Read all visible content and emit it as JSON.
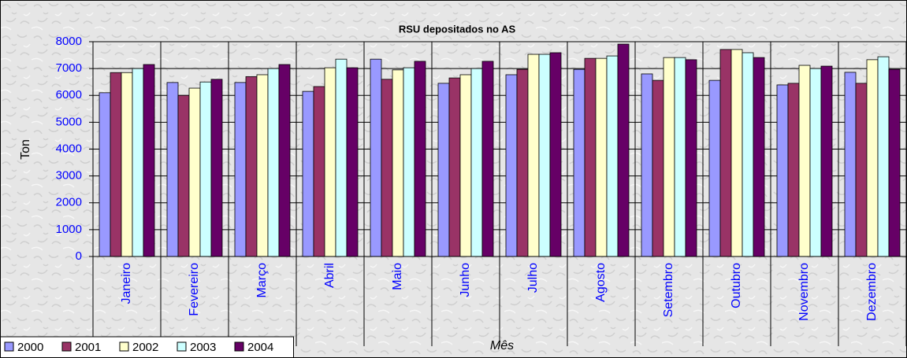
{
  "chart_data": {
    "type": "bar",
    "title": "RSU depositados no AS",
    "x_label": "Mês",
    "y_label": "Ton",
    "categories": [
      "Janeiro",
      "Fevereiro",
      "Março",
      "Abril",
      "Maio",
      "Junho",
      "Julho",
      "Agosto",
      "Setembro",
      "Outubro",
      "Novembro",
      "Dezembro"
    ],
    "series": [
      {
        "name": "2000",
        "color": "#9999ff",
        "values": [
          6100,
          6480,
          6480,
          6150,
          7350,
          6450,
          6770,
          6970,
          6800,
          6560,
          6390,
          6860
        ]
      },
      {
        "name": "2001",
        "color": "#993366",
        "values": [
          6850,
          6000,
          6700,
          6330,
          6600,
          6650,
          6970,
          7380,
          6560,
          7710,
          6450,
          6450
        ]
      },
      {
        "name": "2002",
        "color": "#ffffcc",
        "values": [
          6850,
          6270,
          6770,
          7030,
          6950,
          6770,
          7530,
          7380,
          7410,
          7710,
          7120,
          7330
        ]
      },
      {
        "name": "2003",
        "color": "#ccffff",
        "values": [
          7000,
          6500,
          7000,
          7350,
          7030,
          7000,
          7530,
          7470,
          7410,
          7590,
          7000,
          7440
        ]
      },
      {
        "name": "2004",
        "color": "#660066",
        "values": [
          7150,
          6600,
          7150,
          7030,
          7270,
          7270,
          7590,
          7910,
          7330,
          7410,
          7090,
          6970
        ]
      }
    ],
    "ylim": [
      0,
      8000
    ],
    "yticks": [
      0,
      1000,
      2000,
      3000,
      4000,
      5000,
      6000,
      7000,
      8000
    ],
    "grid": true,
    "legend": "bottom-left"
  }
}
